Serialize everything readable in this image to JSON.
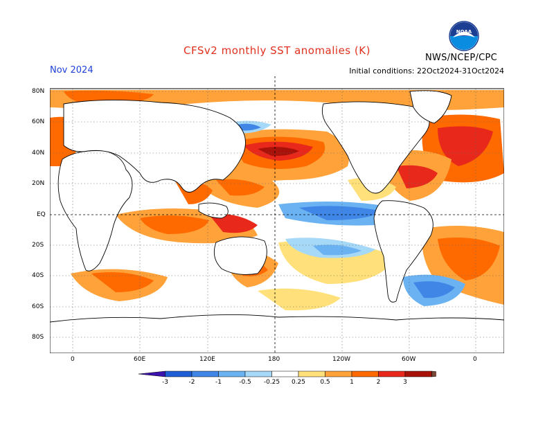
{
  "title": "CFSv2 monthly SST anomalies (K)",
  "month_label": "Nov 2024",
  "initial_conditions": "Initial conditions: 22Oct2024-31Oct2024",
  "agency": "NWS/NCEP/CPC",
  "logo_text": "NOAA",
  "lat_labels": [
    "80N",
    "60N",
    "40N",
    "20N",
    "EQ",
    "20S",
    "40S",
    "60S",
    "80S"
  ],
  "lon_labels": [
    "0",
    "60E",
    "120E",
    "180",
    "120W",
    "60W",
    "0"
  ],
  "colorbar": {
    "labels": [
      "-3",
      "-2",
      "-1",
      "-0.5",
      "-0.25",
      "0.25",
      "0.5",
      "1",
      "2",
      "3"
    ],
    "colors": [
      "#3b14b0",
      "#1f5fd6",
      "#3f86e6",
      "#6ab2f2",
      "#a6d8f8",
      "#ffffff",
      "#ffe07a",
      "#ffa23a",
      "#ff6a00",
      "#e8281a",
      "#a81208",
      "#7a4a3a"
    ]
  }
}
